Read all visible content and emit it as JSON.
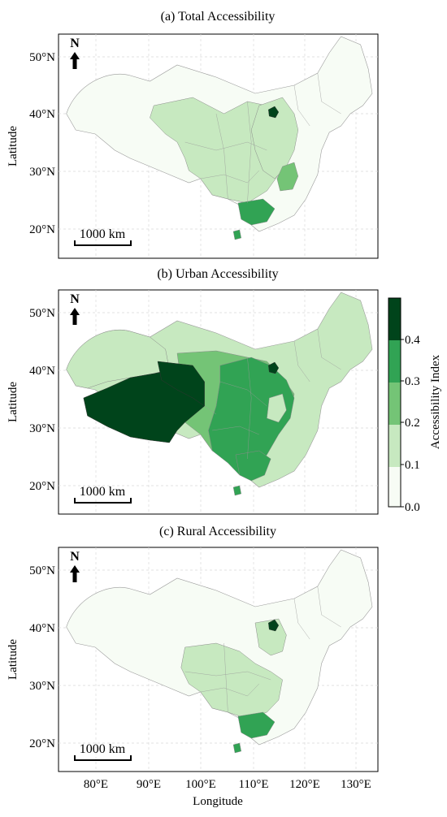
{
  "panels": [
    {
      "title": "(a) Total Accessibility",
      "y_ticks": [
        "50°N",
        "40°N",
        "30°N",
        "20°N"
      ],
      "ylabel": "Latitude",
      "north": "N",
      "scale": "1000 km"
    },
    {
      "title": "(b) Urban Accessibility",
      "y_ticks": [
        "50°N",
        "40°N",
        "30°N",
        "20°N"
      ],
      "ylabel": "Latitude",
      "north": "N",
      "scale": "1000 km"
    },
    {
      "title": "(c) Rural Accessibility",
      "y_ticks": [
        "50°N",
        "40°N",
        "30°N",
        "20°N"
      ],
      "ylabel": "Latitude",
      "north": "N",
      "scale": "1000 km"
    }
  ],
  "x_ticks": [
    "80°E",
    "90°E",
    "100°E",
    "110°E",
    "120°E",
    "130°E"
  ],
  "xlabel": "Longitude",
  "colorbar": {
    "label": "Accessibility Index",
    "ticks": [
      "0.0",
      "0.1",
      "0.2",
      "0.3",
      "0.4"
    ],
    "bins": [
      {
        "range": "0.0–0.1",
        "color": "#f7fcf5"
      },
      {
        "range": "0.1–0.2",
        "color": "#c7e9c0"
      },
      {
        "range": "0.2–0.3",
        "color": "#74c476"
      },
      {
        "range": "0.3–0.4",
        "color": "#31a354"
      },
      {
        "range": "0.4–0.5",
        "color": "#00441b"
      }
    ]
  },
  "map_levels": {
    "total": {
      "base": 0,
      "northeast": 0,
      "central": 1,
      "east": 1,
      "beijing": 4,
      "zhejiang": 2,
      "guangdong": 3,
      "tibet": 0,
      "qinghai": 0,
      "xinjiang": 0
    },
    "urban": {
      "base": 1,
      "northeast": 1,
      "central": 2,
      "east": 3,
      "beijing": 4,
      "zhejiang": 1,
      "guangdong": 3,
      "tibet": 4,
      "qinghai": 4,
      "xinjiang": 1
    },
    "rural": {
      "base": 0,
      "northeast": 0,
      "central": 1,
      "east": 1,
      "beijing": 4,
      "zhejiang": 2,
      "guangdong": 3,
      "tibet": 0,
      "qinghai": 0,
      "xinjiang": 0
    }
  }
}
